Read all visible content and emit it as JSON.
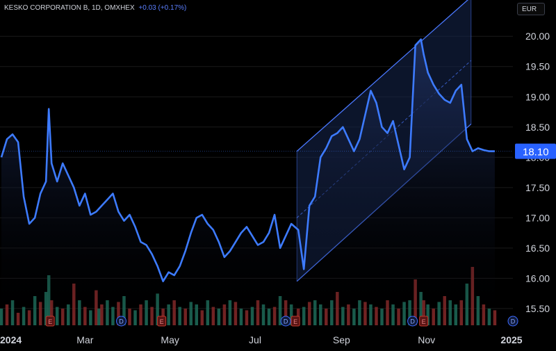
{
  "header": {
    "symbol": "KESKO CORPORATION B, 1D, OMXHEX",
    "change": "+0.03 (+0.17%)"
  },
  "currency_button": "EUR",
  "colors": {
    "background": "#000000",
    "line": "#3d7bff",
    "area_top": "#1e2f5e",
    "channel_border": "#4a78ff",
    "channel_fill": "#15264f",
    "vol_up": "#1f6f5c",
    "vol_down": "#8a2a2a",
    "price_tag": "#2962ff",
    "axis_text": "#d1d4dc"
  },
  "chart_data": {
    "type": "line",
    "title": "KESKO CORPORATION B, 1D, OMXHEX",
    "ylabel": "EUR",
    "y_ticks": [
      "20.00",
      "19.50",
      "19.00",
      "18.50",
      "18.00",
      "17.50",
      "17.00",
      "16.50",
      "16.00",
      "15.50"
    ],
    "y_tick_values": [
      20.0,
      19.5,
      19.0,
      18.5,
      18.0,
      17.5,
      17.0,
      16.5,
      16.0,
      15.5
    ],
    "ylim": [
      15.2,
      20.6
    ],
    "x_ticks": [
      "2024",
      "Mar",
      "May",
      "Jul",
      "Sep",
      "Nov",
      "2025"
    ],
    "x_tick_values": [
      "2024-01-01",
      "2024-03-01",
      "2024-05-01",
      "2024-07-01",
      "2024-09-01",
      "2024-11-01",
      "2025-01-01"
    ],
    "xlim": [
      "2023-12-31",
      "2025-01-02"
    ],
    "last_price": "18.10",
    "price_series": {
      "name": "Close",
      "x": [
        "2024-01-01",
        "2024-01-05",
        "2024-01-09",
        "2024-01-13",
        "2024-01-17",
        "2024-01-21",
        "2024-01-25",
        "2024-01-29",
        "2024-02-02",
        "2024-02-04",
        "2024-02-06",
        "2024-02-10",
        "2024-02-14",
        "2024-02-18",
        "2024-02-22",
        "2024-02-26",
        "2024-03-01",
        "2024-03-05",
        "2024-03-09",
        "2024-03-11",
        "2024-03-13",
        "2024-03-17",
        "2024-03-21",
        "2024-03-25",
        "2024-03-29",
        "2024-04-02",
        "2024-04-06",
        "2024-04-10",
        "2024-04-14",
        "2024-04-18",
        "2024-04-22",
        "2024-04-26",
        "2024-04-30",
        "2024-05-04",
        "2024-05-08",
        "2024-05-12",
        "2024-05-16",
        "2024-05-20",
        "2024-05-24",
        "2024-05-28",
        "2024-06-01",
        "2024-06-05",
        "2024-06-09",
        "2024-06-13",
        "2024-06-17",
        "2024-06-21",
        "2024-06-25",
        "2024-06-29",
        "2024-07-03",
        "2024-07-07",
        "2024-07-11",
        "2024-07-15",
        "2024-07-19",
        "2024-07-23",
        "2024-07-27",
        "2024-08-01",
        "2024-08-05",
        "2024-08-09",
        "2024-08-13",
        "2024-08-17",
        "2024-08-21",
        "2024-08-25",
        "2024-08-29",
        "2024-09-02",
        "2024-09-06",
        "2024-09-10",
        "2024-09-14",
        "2024-09-18",
        "2024-09-22",
        "2024-09-26",
        "2024-09-30",
        "2024-10-04",
        "2024-10-08",
        "2024-10-12",
        "2024-10-16",
        "2024-10-20",
        "2024-10-24",
        "2024-10-28",
        "2024-10-30",
        "2024-11-02",
        "2024-11-06",
        "2024-11-10",
        "2024-11-14",
        "2024-11-18",
        "2024-11-22",
        "2024-11-26",
        "2024-11-30",
        "2024-12-04",
        "2024-12-08",
        "2024-12-12",
        "2024-12-16",
        "2024-12-20"
      ],
      "values": [
        18.0,
        18.3,
        18.38,
        18.25,
        17.35,
        16.9,
        17.0,
        17.4,
        17.6,
        18.8,
        17.9,
        17.6,
        17.9,
        17.7,
        17.5,
        17.2,
        17.4,
        17.05,
        17.1,
        17.15,
        17.2,
        17.3,
        17.4,
        17.1,
        16.95,
        17.05,
        16.85,
        16.6,
        16.55,
        16.4,
        16.2,
        15.95,
        16.1,
        16.05,
        16.2,
        16.45,
        16.75,
        17.0,
        17.05,
        16.9,
        16.8,
        16.6,
        16.35,
        16.45,
        16.6,
        16.75,
        16.85,
        16.7,
        16.55,
        16.6,
        16.75,
        17.05,
        16.5,
        16.7,
        16.9,
        16.8,
        16.15,
        17.2,
        17.35,
        18.0,
        18.15,
        18.35,
        18.4,
        18.5,
        18.3,
        18.1,
        18.3,
        18.7,
        19.1,
        18.9,
        18.5,
        18.4,
        18.6,
        18.2,
        17.8,
        18.0,
        19.85,
        19.95,
        19.7,
        19.4,
        19.2,
        19.05,
        18.95,
        18.9,
        19.1,
        19.2,
        18.3,
        18.1,
        18.15,
        18.12,
        18.1,
        18.1
      ]
    },
    "channel": {
      "start": "2024-07-31",
      "end": "2024-12-03",
      "lower": [
        15.95,
        18.55
      ],
      "upper": [
        18.1,
        20.65
      ],
      "middle": [
        17.0,
        19.6
      ]
    },
    "volume_series": {
      "name": "Volume",
      "values": [
        0.2,
        0.25,
        0.3,
        0.15,
        0.22,
        0.18,
        0.35,
        0.28,
        0.4,
        0.6,
        0.3,
        0.22,
        0.2,
        0.25,
        0.5,
        0.3,
        0.22,
        0.18,
        0.42,
        0.2,
        0.25,
        0.3,
        0.22,
        0.28,
        0.35,
        0.2,
        0.18,
        0.25,
        0.3,
        0.22,
        0.38,
        0.2,
        0.25,
        0.3,
        0.22,
        0.2,
        0.28,
        0.25,
        0.18,
        0.3,
        0.22,
        0.2,
        0.25,
        0.3,
        0.28,
        0.2,
        0.18,
        0.22,
        0.3,
        0.25,
        0.2,
        0.22,
        0.35,
        0.3,
        0.25,
        0.2,
        0.22,
        0.28,
        0.3,
        0.25,
        0.2,
        0.3,
        0.4,
        0.22,
        0.25,
        0.2,
        0.3,
        0.28,
        0.25,
        0.22,
        0.2,
        0.3,
        0.25,
        0.2,
        0.28,
        0.3,
        0.55,
        0.4,
        0.3,
        0.25,
        0.2,
        0.28,
        0.35,
        0.3,
        0.25,
        0.3,
        0.5,
        0.7,
        0.35,
        0.25,
        0.2,
        0.18
      ],
      "up": [
        true,
        false,
        true,
        false,
        true,
        false,
        true,
        false,
        true,
        true,
        false,
        true,
        false,
        true,
        false,
        true,
        false,
        true,
        false,
        true,
        false,
        true,
        true,
        false,
        true,
        false,
        true,
        false,
        true,
        false,
        true,
        false,
        true,
        false,
        true,
        false,
        true,
        true,
        false,
        true,
        false,
        true,
        false,
        true,
        false,
        true,
        false,
        true,
        false,
        true,
        true,
        false,
        true,
        false,
        true,
        false,
        true,
        false,
        true,
        true,
        false,
        true,
        false,
        true,
        false,
        true,
        true,
        false,
        true,
        false,
        true,
        false,
        true,
        false,
        true,
        true,
        false,
        true,
        false,
        true,
        false,
        true,
        false,
        true,
        true,
        false,
        true,
        false,
        true,
        false,
        true,
        false
      ]
    },
    "events": [
      {
        "label": "E",
        "x": "2024-02-05",
        "kind": "earnings"
      },
      {
        "label": "D",
        "x": "2024-03-27",
        "kind": "dividend"
      },
      {
        "label": "E",
        "x": "2024-04-25",
        "kind": "earnings"
      },
      {
        "label": "D",
        "x": "2024-07-23",
        "kind": "dividend"
      },
      {
        "label": "E",
        "x": "2024-07-30",
        "kind": "earnings"
      },
      {
        "label": "D",
        "x": "2024-10-22",
        "kind": "dividend"
      },
      {
        "label": "E",
        "x": "2024-10-30",
        "kind": "earnings"
      },
      {
        "label": "D",
        "x": "2025-01-02",
        "kind": "dividend"
      }
    ]
  }
}
